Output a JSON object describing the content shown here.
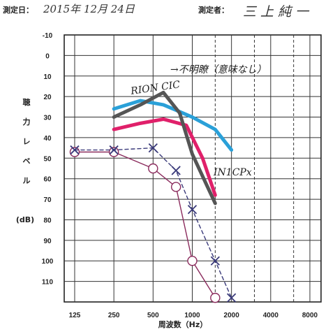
{
  "header": {
    "date_label": "測定日：",
    "date_value": "2015年 12月 24日",
    "tester_label": "測定者：",
    "tester_value": "三 上 純 一"
  },
  "chart_data": {
    "type": "line",
    "title": "",
    "xlabel": "周波数（Hz）",
    "ylabel_chars": [
      "聴",
      "力",
      "レ",
      "ベ",
      "ル"
    ],
    "yunit": "(dB)",
    "x_ticks": [
      "125",
      "250",
      "500",
      "1000",
      "2000",
      "4000",
      "8000"
    ],
    "x_ticks_values": [
      125,
      250,
      500,
      1000,
      2000,
      4000,
      8000
    ],
    "y_ticks": [
      "-10",
      "0",
      "10",
      "20",
      "30",
      "40",
      "50",
      "60",
      "70",
      "80",
      "90",
      "100",
      "110"
    ],
    "ylim": [
      -10,
      120
    ],
    "y_inverted": true,
    "log_x": true,
    "grid": true,
    "series": [
      {
        "color": "#8a2a5c",
        "marker": "circle",
        "line": "solid",
        "points": [
          [
            125,
            47
          ],
          [
            250,
            47
          ],
          [
            500,
            55
          ],
          [
            750,
            64
          ],
          [
            1000,
            100
          ],
          [
            1500,
            118
          ]
        ]
      },
      {
        "color": "#3a3a7a",
        "marker": "cross",
        "line": "dashed",
        "points": [
          [
            125,
            46
          ],
          [
            250,
            46
          ],
          [
            500,
            45
          ],
          [
            750,
            56
          ],
          [
            1000,
            75
          ],
          [
            1500,
            100
          ],
          [
            2000,
            118
          ]
        ]
      },
      {
        "color": "#2aa0d8",
        "marker": "none",
        "line": "solid",
        "points": [
          [
            250,
            26
          ],
          [
            400,
            22
          ],
          [
            600,
            24
          ],
          [
            1000,
            30
          ],
          [
            1500,
            36
          ],
          [
            2000,
            46
          ]
        ]
      },
      {
        "color": "#e0206a",
        "marker": "none",
        "line": "solid",
        "points": [
          [
            250,
            36
          ],
          [
            400,
            33
          ],
          [
            600,
            31
          ],
          [
            900,
            34
          ],
          [
            1200,
            50
          ],
          [
            1500,
            68
          ]
        ]
      },
      {
        "color": "#555555",
        "marker": "none",
        "line": "solid",
        "points": [
          [
            250,
            30
          ],
          [
            400,
            24
          ],
          [
            600,
            18
          ],
          [
            800,
            28
          ],
          [
            1000,
            48
          ],
          [
            1500,
            72
          ]
        ]
      }
    ],
    "annotations": {
      "rion": "RION CIC",
      "unclear": "→不明瞭（意味なし）",
      "in1cp": "IN1CPx"
    }
  }
}
